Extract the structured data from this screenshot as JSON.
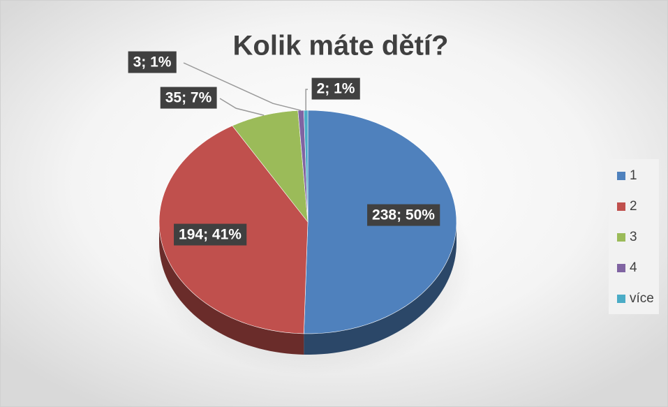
{
  "chart_data": {
    "type": "pie",
    "title": "Kolik máte dětí?",
    "categories": [
      "1",
      "2",
      "3",
      "4",
      "více"
    ],
    "values": [
      238,
      194,
      35,
      3,
      2
    ],
    "value_labels": [
      "238; 50%",
      "194; 41%",
      "35; 7%",
      "3; 1%",
      "2; 1%"
    ],
    "colors": [
      "#4f81bd",
      "#c0504d",
      "#9bbb59",
      "#8064a2",
      "#4bacc6"
    ],
    "legend": "right"
  }
}
